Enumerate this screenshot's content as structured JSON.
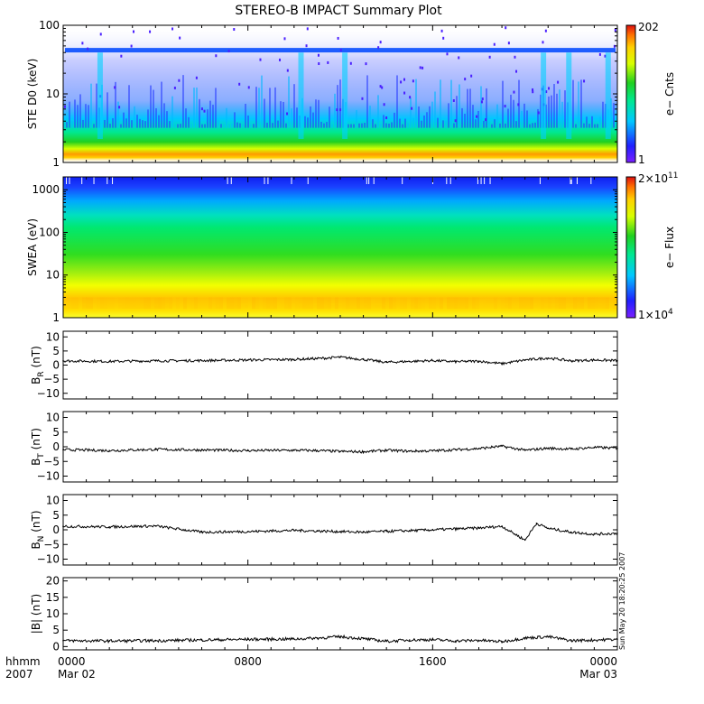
{
  "title": "STEREO-B IMPACT Summary Plot",
  "time_axis": {
    "row1_label": "hhmm",
    "row2_label": "2007",
    "ticks": [
      {
        "hour": 0,
        "time": "0000",
        "date": "Mar 02"
      },
      {
        "hour": 8,
        "time": "0800",
        "date": ""
      },
      {
        "hour": 16,
        "time": "1600",
        "date": ""
      },
      {
        "hour": 24,
        "time": "0000",
        "date": "Mar 03"
      }
    ],
    "range_hours": [
      0,
      24
    ]
  },
  "timestamp": "Sun May 20 18:20:25 2007",
  "colors": {
    "frame": "#000000",
    "trace": "#000000",
    "colormap": [
      "#7a1fff",
      "#2020ff",
      "#00c8ff",
      "#00e890",
      "#20d020",
      "#d8ff00",
      "#ffd000",
      "#ff7000",
      "#e01010"
    ]
  },
  "chart_data": [
    {
      "type": "heatmap",
      "name": "ste-d0",
      "ylabel": "STE D0 (keV)",
      "yscale": "log",
      "ylim": [
        1,
        100
      ],
      "yticks": [
        "100",
        "10",
        "1"
      ],
      "colorbar": {
        "label": "e− Cnts",
        "max_label": "202",
        "min_label": "1",
        "range": [
          1,
          202
        ]
      }
    },
    {
      "type": "heatmap",
      "name": "swea",
      "ylabel": "SWEA (eV)",
      "yscale": "log",
      "ylim": [
        1,
        2000
      ],
      "yticks": [
        "1000",
        "100",
        "10",
        "1"
      ],
      "colorbar": {
        "label": "e− Flux",
        "max_label": "2×10",
        "max_exp": "11",
        "min_label": "1×10",
        "min_exp": "4",
        "range": [
          10000,
          200000000000
        ]
      }
    },
    {
      "type": "line",
      "name": "br",
      "ylabel_sym": "B",
      "ylabel_sub": "R",
      "ylabel_unit": "(nT)",
      "ylim": [
        -12,
        12
      ],
      "yticks": [
        "10",
        "5",
        "0",
        "−5",
        "−10"
      ],
      "x": [
        0,
        2,
        4,
        6,
        8,
        10,
        11,
        12,
        13,
        14,
        15,
        16,
        17,
        18,
        19,
        20,
        21,
        22,
        23,
        24
      ],
      "values": [
        1.5,
        1.3,
        1.5,
        1.6,
        1.8,
        2.0,
        2.3,
        2.8,
        2.0,
        1.0,
        1.3,
        1.6,
        1.2,
        1.4,
        0.5,
        1.8,
        2.5,
        1.5,
        1.8,
        1.6
      ]
    },
    {
      "type": "line",
      "name": "bt",
      "ylabel_sym": "B",
      "ylabel_sub": "T",
      "ylabel_unit": "(nT)",
      "ylim": [
        -12,
        12
      ],
      "yticks": [
        "10",
        "5",
        "0",
        "−5",
        "−10"
      ],
      "x": [
        0,
        2,
        4,
        6,
        8,
        10,
        11,
        12,
        13,
        14,
        15,
        16,
        17,
        18,
        19,
        20,
        21,
        22,
        23,
        24
      ],
      "values": [
        -1.0,
        -1.3,
        -0.9,
        -1.1,
        -1.3,
        -1.2,
        -1.3,
        -1.6,
        -1.7,
        -1.2,
        -1.5,
        -1.4,
        -1.0,
        -0.6,
        0.2,
        -1.2,
        -0.5,
        -0.8,
        -0.2,
        -0.5
      ]
    },
    {
      "type": "line",
      "name": "bn",
      "ylabel_sym": "B",
      "ylabel_sub": "N",
      "ylabel_unit": "(nT)",
      "ylim": [
        -12,
        12
      ],
      "yticks": [
        "10",
        "5",
        "0",
        "−5",
        "−10"
      ],
      "x": [
        0,
        2,
        4,
        6,
        8,
        10,
        11,
        12,
        13,
        14,
        15,
        16,
        17,
        18,
        19,
        20,
        20.5,
        21,
        22,
        23,
        24
      ],
      "values": [
        1.2,
        1.0,
        1.3,
        -0.8,
        -0.6,
        -0.2,
        -0.4,
        -0.6,
        -0.8,
        -0.5,
        -0.3,
        0.0,
        0.3,
        0.6,
        1.2,
        -3.5,
        2.2,
        0.5,
        -0.8,
        -1.5,
        -1.2
      ]
    },
    {
      "type": "line",
      "name": "bmag",
      "ylabel_sym": "|B|",
      "ylabel_sub": "",
      "ylabel_unit": "(nT)",
      "ylim": [
        -1,
        21
      ],
      "yticks": [
        "20",
        "15",
        "10",
        "5",
        "0"
      ],
      "x": [
        0,
        2,
        4,
        6,
        8,
        10,
        11,
        12,
        13,
        14,
        15,
        16,
        17,
        18,
        19,
        20,
        21,
        22,
        23,
        24
      ],
      "values": [
        1.8,
        1.7,
        1.8,
        2.0,
        2.2,
        2.3,
        2.6,
        3.0,
        2.4,
        1.6,
        2.0,
        2.1,
        1.7,
        1.9,
        1.5,
        2.6,
        3.0,
        1.8,
        2.0,
        2.2
      ]
    }
  ]
}
